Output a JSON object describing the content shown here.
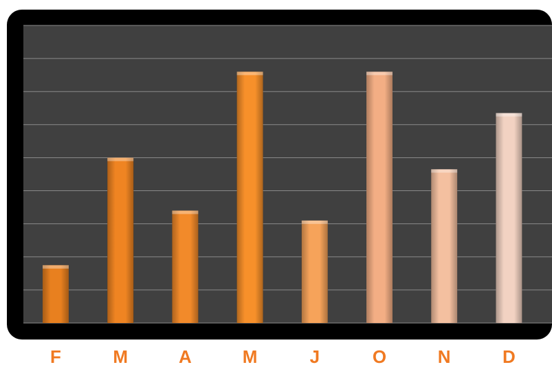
{
  "chart_data": {
    "type": "bar",
    "categories": [
      "F",
      "M",
      "A",
      "M",
      "J",
      "O",
      "N",
      "D"
    ],
    "values": [
      1.75,
      5.0,
      3.4,
      7.6,
      3.1,
      7.6,
      4.65,
      6.35
    ],
    "ylim": [
      0,
      9
    ],
    "grid": true,
    "title": "",
    "xlabel": "",
    "ylabel": "",
    "colors": {
      "plot_background": "#404040",
      "frame": "#000000",
      "gridline": "#8a8a8a",
      "label": "#f07a22",
      "bars": [
        "#e8801f",
        "#ef8422",
        "#f28a2a",
        "#f7902a",
        "#f6a35a",
        "#f3ae84",
        "#f4c0a0",
        "#f2d2c2"
      ]
    }
  }
}
